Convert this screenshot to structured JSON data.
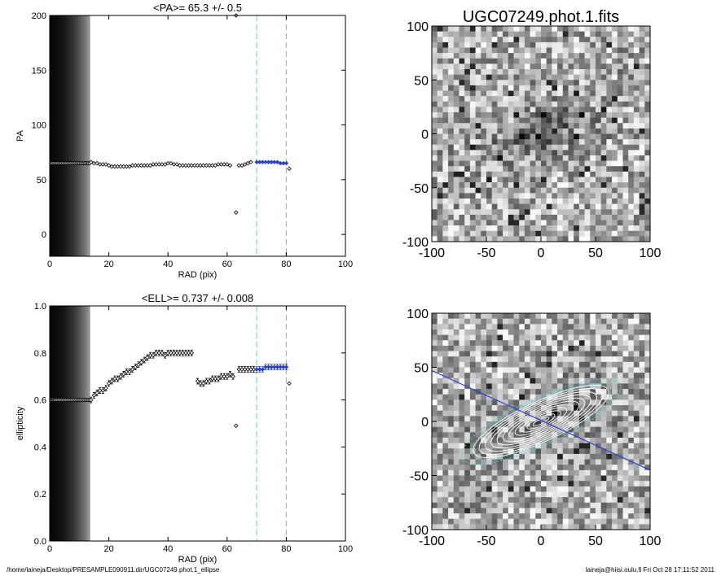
{
  "chart_data": [
    {
      "type": "scatter",
      "title": "<PA>=  65.3 +/-   0.5",
      "xlabel": "RAD (pix)",
      "ylabel": "PA",
      "xlim": [
        0,
        100
      ],
      "ylim": [
        -20,
        200
      ],
      "xticks": [
        0,
        20,
        40,
        60,
        80,
        100
      ],
      "yticks": [
        0,
        50,
        100,
        150,
        200
      ],
      "fit_range": [
        70,
        80
      ],
      "inner_band_x": [
        0,
        13.5
      ],
      "series": [
        {
          "x": [
            0.5,
            1,
            1.5,
            2,
            2.5,
            3,
            3.5,
            4,
            4.5,
            5,
            5.5,
            6,
            6.5,
            7,
            7.5,
            8,
            8.5,
            9,
            9.5,
            10,
            10.5,
            11,
            11.5,
            12,
            12.5,
            13,
            13.5
          ],
          "y": [
            65,
            65,
            65,
            65,
            65,
            65,
            65,
            65,
            65,
            65,
            65,
            65,
            65,
            65,
            65,
            65,
            65,
            65,
            65,
            65,
            65,
            65,
            65,
            65,
            65,
            65,
            65
          ]
        },
        {
          "x": [
            14,
            15,
            16,
            17,
            18,
            19,
            20,
            21,
            22,
            23,
            24,
            25,
            26,
            27,
            28,
            29,
            30,
            31,
            32,
            33,
            34,
            35,
            36,
            37,
            38,
            39,
            40,
            41,
            42,
            43,
            44,
            45,
            46,
            47,
            48,
            49,
            50,
            51,
            52,
            53,
            54,
            55,
            56,
            57,
            58,
            59,
            60,
            61,
            64,
            65,
            66,
            67,
            68
          ],
          "y": [
            66,
            65,
            65,
            64,
            64,
            64,
            63,
            62,
            62,
            62,
            62,
            62,
            62,
            62,
            63,
            63,
            63,
            63,
            63,
            63,
            63,
            64,
            64,
            64,
            64,
            64,
            65,
            65,
            64,
            64,
            63,
            63,
            63,
            63,
            63,
            63,
            63,
            63,
            63,
            63,
            63,
            63,
            63,
            64,
            64,
            64,
            64,
            63,
            63,
            63,
            64,
            65,
            66
          ]
        },
        {
          "x": [
            70,
            71,
            72,
            73,
            74,
            75,
            76,
            77,
            78,
            79,
            80
          ],
          "y": [
            66,
            66,
            66,
            66,
            66,
            66,
            66,
            66,
            65,
            65,
            65
          ],
          "color": "#2a3fd6"
        },
        {
          "x": [
            63,
            63,
            81
          ],
          "y": [
            20,
            200,
            60
          ]
        }
      ]
    },
    {
      "type": "scatter",
      "title": "<ELL>= 0.737 +/-  0.008",
      "xlabel": "RAD (pix)",
      "ylabel": "ellipticity",
      "xlim": [
        0,
        100
      ],
      "ylim": [
        0,
        1
      ],
      "xticks": [
        0,
        20,
        40,
        60,
        80,
        100
      ],
      "yticks": [
        0.0,
        0.2,
        0.4,
        0.6,
        0.8,
        1.0
      ],
      "fit_range": [
        70,
        80
      ],
      "inner_band_x": [
        0,
        13.5
      ],
      "series": [
        {
          "x": [
            0.5,
            1,
            1.5,
            2,
            2.5,
            3,
            3.5,
            4,
            4.5,
            5,
            5.5,
            6,
            6.5,
            7,
            7.5,
            8,
            8.5,
            9,
            9.5,
            10,
            10.5,
            11,
            11.5,
            12,
            12.5,
            13,
            13.5
          ],
          "y": [
            0.6,
            0.6,
            0.6,
            0.6,
            0.6,
            0.6,
            0.6,
            0.6,
            0.6,
            0.6,
            0.6,
            0.6,
            0.6,
            0.6,
            0.6,
            0.6,
            0.6,
            0.6,
            0.6,
            0.6,
            0.6,
            0.6,
            0.6,
            0.6,
            0.6,
            0.6,
            0.6
          ]
        },
        {
          "x": [
            14,
            15,
            16,
            17,
            18,
            19,
            20,
            21,
            22,
            23,
            24,
            25,
            26,
            27,
            28,
            29,
            30,
            31,
            32,
            33,
            34,
            35,
            36,
            37,
            38,
            39,
            40,
            41,
            42,
            43,
            44,
            45,
            46,
            47,
            48
          ],
          "y": [
            0.6,
            0.62,
            0.63,
            0.64,
            0.64,
            0.65,
            0.67,
            0.68,
            0.69,
            0.69,
            0.7,
            0.71,
            0.72,
            0.72,
            0.73,
            0.74,
            0.75,
            0.76,
            0.77,
            0.78,
            0.79,
            0.79,
            0.8,
            0.8,
            0.8,
            0.79,
            0.8,
            0.8,
            0.8,
            0.8,
            0.8,
            0.8,
            0.8,
            0.8,
            0.8
          ],
          "err": 0.012
        },
        {
          "x": [
            50,
            51,
            52,
            53,
            54,
            55,
            56,
            57,
            58,
            59,
            60,
            61,
            62,
            64,
            65,
            66,
            67,
            68,
            69
          ],
          "y": [
            0.68,
            0.67,
            0.67,
            0.68,
            0.68,
            0.69,
            0.69,
            0.69,
            0.7,
            0.7,
            0.7,
            0.71,
            0.7,
            0.73,
            0.73,
            0.73,
            0.73,
            0.73,
            0.73
          ],
          "err": 0.012
        },
        {
          "x": [
            70,
            71,
            72,
            73,
            74,
            75,
            76,
            77,
            78,
            79,
            80
          ],
          "y": [
            0.73,
            0.73,
            0.73,
            0.74,
            0.74,
            0.74,
            0.74,
            0.74,
            0.74,
            0.74,
            0.74
          ],
          "err": 0.012,
          "color": "#2a3fd6"
        },
        {
          "x": [
            63,
            81
          ],
          "y": [
            0.49,
            0.67
          ]
        }
      ]
    },
    {
      "type": "heatmap",
      "title": "UGC07249.phot.1.fits",
      "xlim": [
        -100,
        100
      ],
      "ylim": [
        -100,
        100
      ],
      "xticks": [
        -100,
        -50,
        0,
        50,
        100
      ],
      "yticks": [
        -100,
        -50,
        0,
        50,
        100
      ],
      "galaxy": {
        "center": [
          0,
          0
        ],
        "pa_deg": 25,
        "semi_major": 55,
        "ellipticity": 0.74
      }
    },
    {
      "type": "heatmap",
      "xlim": [
        -100,
        100
      ],
      "ylim": [
        -100,
        100
      ],
      "xticks": [
        -100,
        -50,
        0,
        50,
        100
      ],
      "yticks": [
        -100,
        -50,
        0,
        50,
        100
      ],
      "major_axis_line": {
        "x": [
          -100,
          100
        ],
        "y": [
          47,
          -45
        ],
        "color": "#2a3fd6"
      },
      "contours": {
        "semi_major": [
          8,
          14,
          20,
          26,
          32,
          38,
          44,
          50,
          56,
          62,
          68
        ],
        "ellipticity": 0.73,
        "pa_deg": 25,
        "color": "#ffffff"
      },
      "fit_contours": {
        "semi_major": [
          70,
          80
        ],
        "color": "#4fd4d4"
      }
    }
  ],
  "footer": {
    "left": "/home/laineja/Desktop/PRESAMPLE090911.dir/UGC07249.phot.1_ellipse",
    "right": "laineja@hiisi.oulu.fi  Fri Oct 28 17:11:52 2011"
  },
  "colors": {
    "fit_points": "#2a3fd6",
    "fit_lines": "#4fd4d4"
  }
}
